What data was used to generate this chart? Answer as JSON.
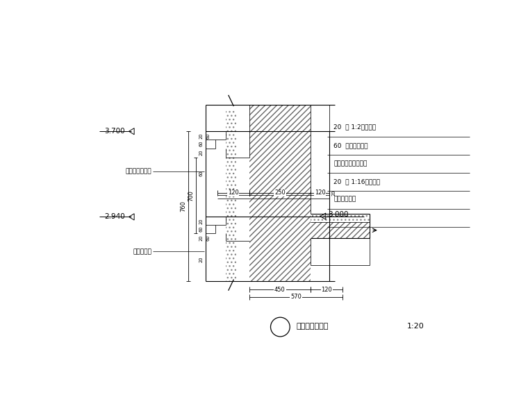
{
  "bg_color": "#ffffff",
  "line_color": "#000000",
  "title": "山墙一层顶线角",
  "scale": "1:20",
  "label_wall": "集白色外墙面砖",
  "label_paint_bottom": "刷白色涂料",
  "label_r1": "20  厚 1:2水泥砂浆",
  "label_r2": "60  厚炉渣混凝土",
  "label_r3": "现浇钢筋混凝土楼板",
  "label_r4": "20  厚 1:16混合砂浆",
  "label_r5": "刷白明色涂料",
  "elev_3700": "3.700",
  "elev_2940": "2.940",
  "elev_3000": "3.000",
  "dim_700": "700",
  "dim_760": "760",
  "dim_120a": "120",
  "dim_250": "250",
  "dim_120b": "120",
  "dim_20": "20",
  "dim_60": "60",
  "dim_450": "450",
  "dim_120c": "120",
  "dim_570": "570"
}
